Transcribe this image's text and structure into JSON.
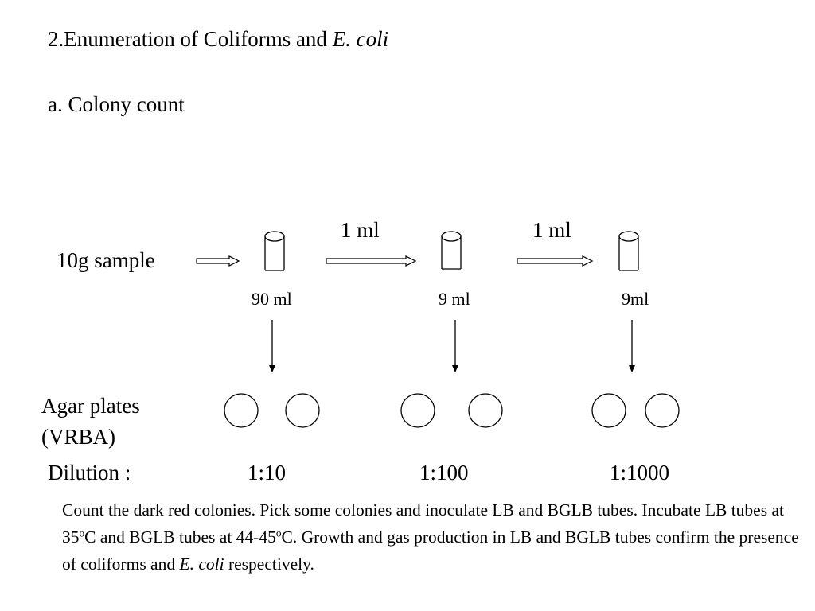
{
  "heading": {
    "title_prefix": "2.Enumeration of Coliforms and ",
    "title_italic": "E. coli",
    "subtitle": "a. Colony count"
  },
  "diagram": {
    "sample_label": "10g sample",
    "transfer_labels": [
      "1 ml",
      "1 ml"
    ],
    "tubes": [
      {
        "volume": "90 ml"
      },
      {
        "volume": "9 ml"
      },
      {
        "volume": "9ml"
      }
    ],
    "plates_label_line1": "Agar plates",
    "plates_label_line2": "(VRBA)",
    "dilution_label": "Dilution :",
    "dilutions": [
      "1:10",
      "1:100",
      "1:1000"
    ]
  },
  "note": {
    "part1": "Count the dark red colonies. Pick some colonies and inoculate LB and BGLB tubes. Incubate LB tubes at 35",
    "sup1": "o",
    "part2": "C and BGLB tubes at 44-45",
    "sup2": "o",
    "part3": "C. Growth and gas production in LB and BGLB tubes confirm the presence of coliforms and ",
    "italic": "E. coli",
    "part4": " respectively."
  }
}
